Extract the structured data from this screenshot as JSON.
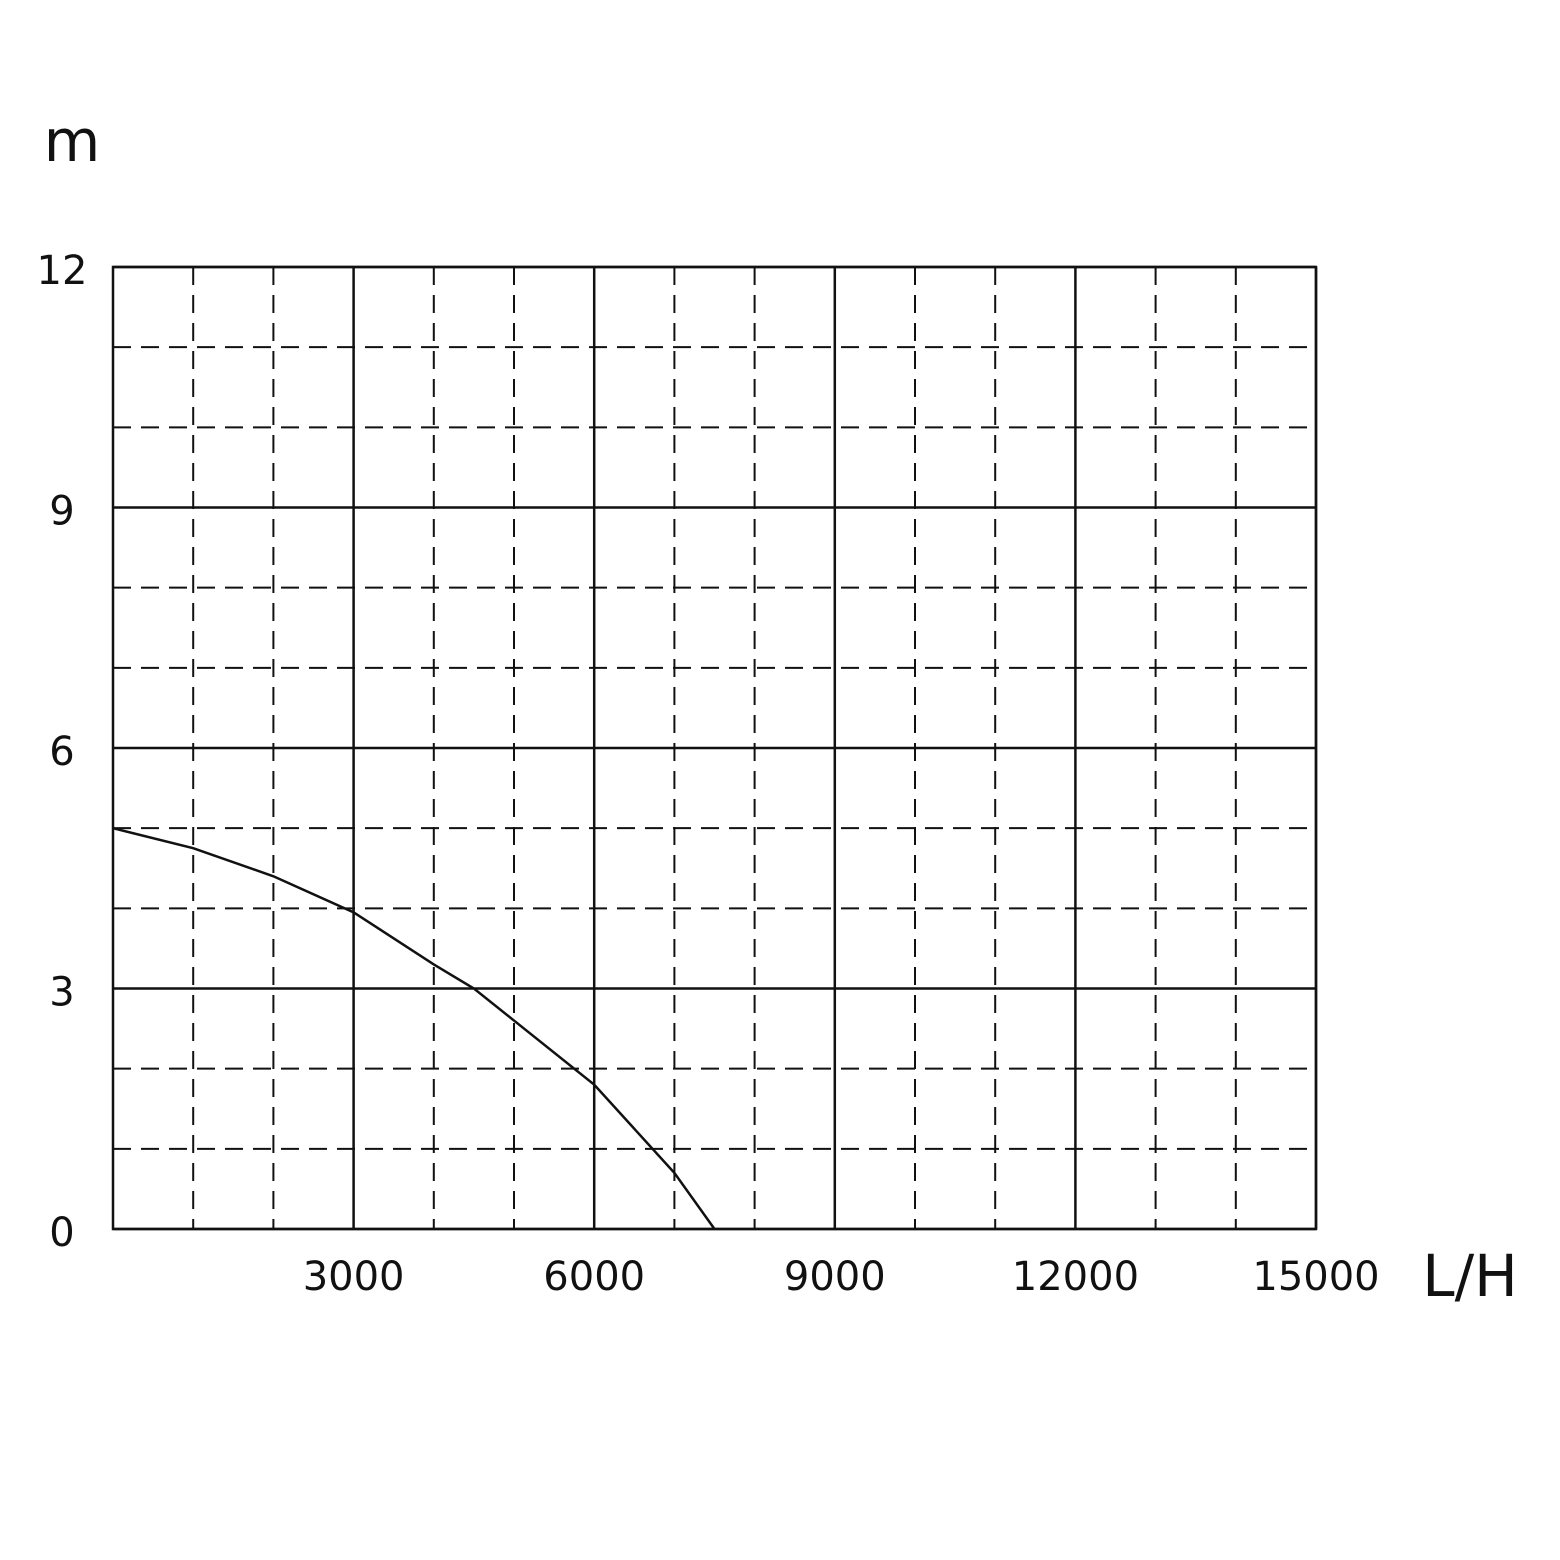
{
  "chart_data": {
    "type": "line",
    "y_label": "m",
    "x_label": "L/H",
    "x": [
      0,
      1000,
      2000,
      3000,
      4000,
      4500,
      5000,
      6000,
      7000,
      7500
    ],
    "series": [
      {
        "color": "#111111",
        "values": [
          5.0,
          4.75,
          4.4,
          3.95,
          3.3,
          3.0,
          2.6,
          1.8,
          0.7,
          0
        ]
      }
    ],
    "xlim": [
      0,
      15000
    ],
    "xticks": [
      3000,
      6000,
      9000,
      12000,
      15000
    ],
    "ylim": [
      0,
      12
    ],
    "yticks": [
      0,
      3,
      6,
      9,
      12
    ],
    "minor_xticks": [
      1000,
      2000,
      4000,
      5000,
      7000,
      8000,
      10000,
      11000,
      13000,
      14000
    ],
    "minor_yticks": [
      1,
      2,
      4,
      5,
      7,
      8,
      10,
      11
    ],
    "grid": true
  }
}
